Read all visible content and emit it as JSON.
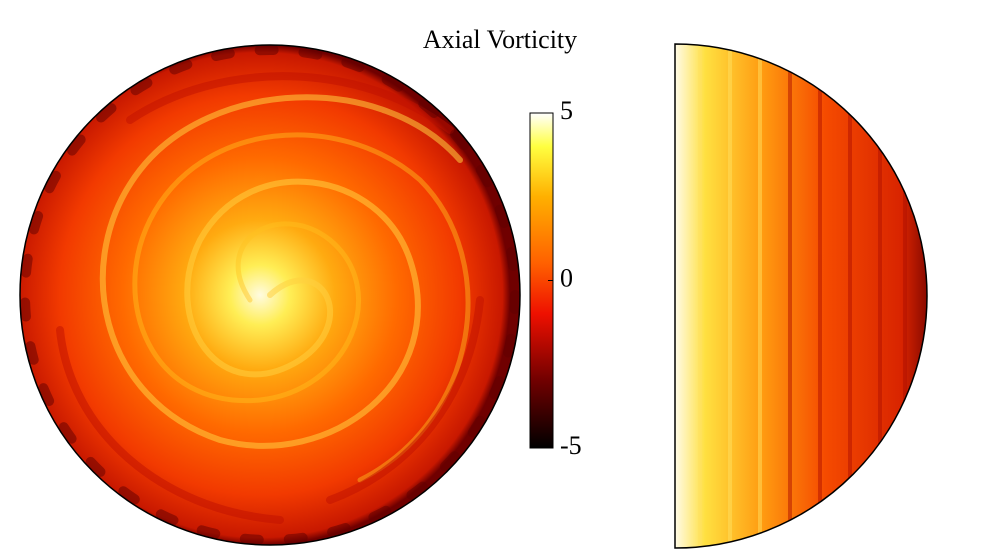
{
  "title": "Axial Vorticity",
  "colorbar": {
    "lim": [
      -5,
      5
    ],
    "ticks": [
      5,
      0,
      -5
    ]
  }
}
